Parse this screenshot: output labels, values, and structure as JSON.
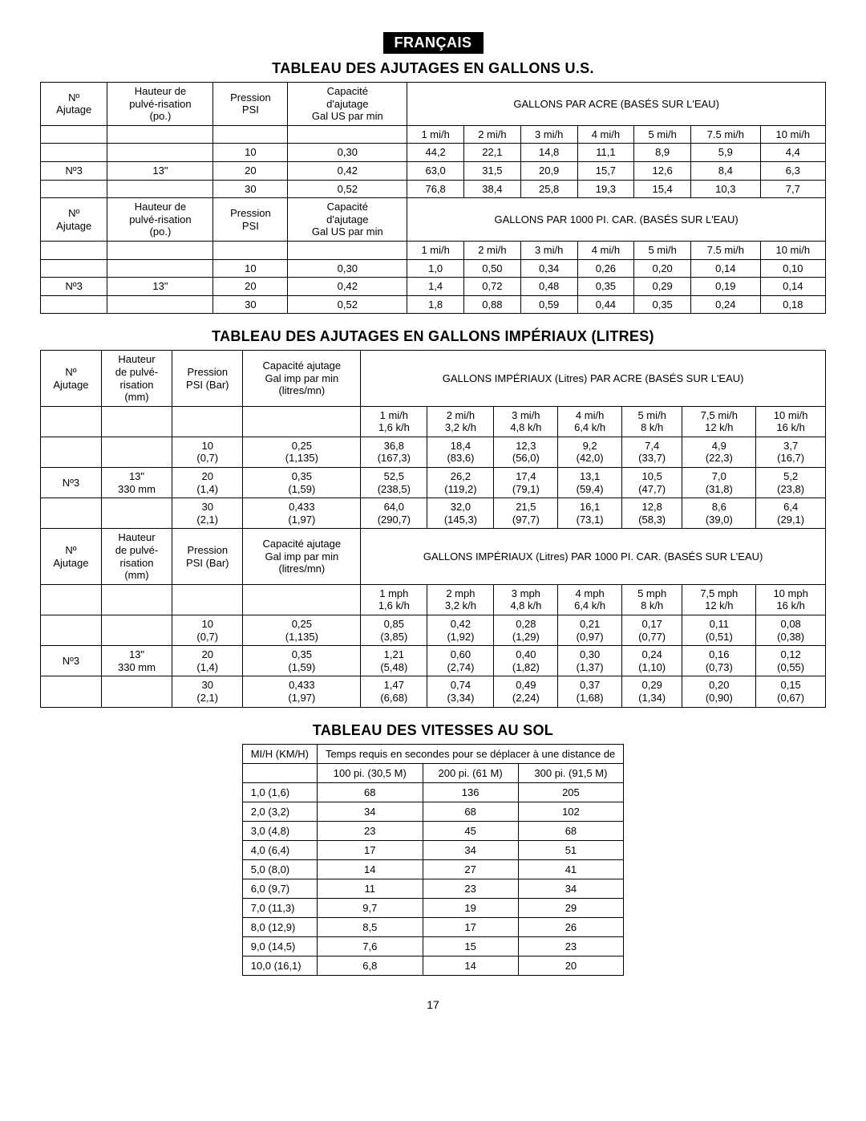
{
  "lang_badge": "FRANÇAIS",
  "page_number": "17",
  "colors": {
    "badge_bg": "#000000",
    "badge_fg": "#ffffff",
    "text": "#000000",
    "bg": "#ffffff",
    "border": "#000000"
  },
  "fonts": {
    "family": "Arial",
    "title_size_pt": 14,
    "body_size_pt": 10
  },
  "table_us": {
    "title": "TABLEAU DES AJUTAGES EN GALLONS U.S.",
    "col_headers_1": [
      "Nº\nAjutage",
      "Hauteur de\npulvé-risation\n(po.)",
      "Pression\nPSI",
      "Capacité\nd'ajutage\nGal US par min"
    ],
    "span_header_1": "GALLONS PAR ACRE (BASÉS SUR L'EAU)",
    "speeds_1": [
      "1 mi/h",
      "2 mi/h",
      "3 mi/h",
      "4 mi/h",
      "5 mi/h",
      "7.5 mi/h",
      "10 mi/h"
    ],
    "rows_1": [
      [
        "",
        "",
        "10",
        "0,30",
        "44,2",
        "22,1",
        "14,8",
        "11,1",
        "8,9",
        "5,9",
        "4,4"
      ],
      [
        "Nº3",
        "13\"",
        "20",
        "0,42",
        "63,0",
        "31,5",
        "20,9",
        "15,7",
        "12,6",
        "8,4",
        "6,3"
      ],
      [
        "",
        "",
        "30",
        "0,52",
        "76,8",
        "38,4",
        "25,8",
        "19,3",
        "15,4",
        "10,3",
        "7,7"
      ]
    ],
    "col_headers_2": [
      "Nº\nAjutage",
      "Hauteur de\npulvé-risation\n(po.)",
      "Pression\nPSI",
      "Capacité\nd'ajutage\nGal US par min"
    ],
    "span_header_2": "GALLONS PAR 1000 PI. CAR. (BASÉS SUR L'EAU)",
    "speeds_2": [
      "1 mi/h",
      "2 mi/h",
      "3 mi/h",
      "4 mi/h",
      "5 mi/h",
      "7.5 mi/h",
      "10 mi/h"
    ],
    "rows_2": [
      [
        "",
        "",
        "10",
        "0,30",
        "1,0",
        "0,50",
        "0,34",
        "0,26",
        "0,20",
        "0,14",
        "0,10"
      ],
      [
        "Nº3",
        "13\"",
        "20",
        "0,42",
        "1,4",
        "0,72",
        "0,48",
        "0,35",
        "0,29",
        "0,19",
        "0,14"
      ],
      [
        "",
        "",
        "30",
        "0,52",
        "1,8",
        "0,88",
        "0,59",
        "0,44",
        "0,35",
        "0,24",
        "0,18"
      ]
    ]
  },
  "table_imp": {
    "title": "TABLEAU DES AJUTAGES EN GALLONS IMPÉRIAUX (LITRES)",
    "col_headers_1": [
      "Nº\nAjutage",
      "Hauteur\nde pulvé-\nrisation\n(mm)",
      "Pression\nPSI (Bar)",
      "Capacité ajutage\nGal imp par min\n(litres/mn)"
    ],
    "span_header_1": "GALLONS IMPÉRIAUX (Litres) PAR ACRE (BASÉS SUR L'EAU)",
    "speeds_1": [
      "1 mi/h\n1,6 k/h",
      "2 mi/h\n3,2 k/h",
      "3 mi/h\n4,8 k/h",
      "4 mi/h\n6,4 k/h",
      "5 mi/h\n8 k/h",
      "7,5 mi/h\n12 k/h",
      "10 mi/h\n16 k/h"
    ],
    "rows_1": [
      [
        "",
        "",
        "10\n(0,7)",
        "0,25\n(1,135)",
        "36,8\n(167,3)",
        "18,4\n(83,6)",
        "12,3\n(56,0)",
        "9,2\n(42,0)",
        "7,4\n(33,7)",
        "4,9\n(22,3)",
        "3,7\n(16,7)"
      ],
      [
        "Nº3",
        "13\"\n330 mm",
        "20\n(1,4)",
        "0,35\n(1,59)",
        "52,5\n(238,5)",
        "26,2\n(119,2)",
        "17,4\n(79,1)",
        "13,1\n(59,4)",
        "10,5\n(47,7)",
        "7,0\n(31,8)",
        "5,2\n(23,8)"
      ],
      [
        "",
        "",
        "30\n(2,1)",
        "0,433\n(1,97)",
        "64,0\n(290,7)",
        "32,0\n(145,3)",
        "21,5\n(97,7)",
        "16,1\n(73,1)",
        "12,8\n(58,3)",
        "8,6\n(39,0)",
        "6,4\n(29,1)"
      ]
    ],
    "col_headers_2": [
      "Nº\nAjutage",
      "Hauteur\nde pulvé-\nrisation\n(mm)",
      "Pression\nPSI (Bar)",
      "Capacité ajutage\nGal imp par min\n(litres/mn)"
    ],
    "span_header_2": "GALLONS IMPÉRIAUX (Litres) PAR 1000 PI. CAR. (BASÉS SUR L'EAU)",
    "speeds_2": [
      "1 mph\n1,6 k/h",
      "2 mph\n3,2 k/h",
      "3 mph\n4,8 k/h",
      "4 mph\n6,4 k/h",
      "5 mph\n8 k/h",
      "7,5 mph\n12 k/h",
      "10 mph\n16 k/h"
    ],
    "rows_2": [
      [
        "",
        "",
        "10\n(0,7)",
        "0,25\n(1,135)",
        "0,85\n(3,85)",
        "0,42\n(1,92)",
        "0,28\n(1,29)",
        "0,21\n(0,97)",
        "0,17\n(0,77)",
        "0,11\n(0,51)",
        "0,08\n(0,38)"
      ],
      [
        "Nº3",
        "13\"\n330 mm",
        "20\n(1,4)",
        "0,35\n(1,59)",
        "1,21\n(5,48)",
        "0,60\n(2,74)",
        "0,40\n(1,82)",
        "0,30\n(1,37)",
        "0,24\n(1,10)",
        "0,16\n(0,73)",
        "0,12\n(0,55)"
      ],
      [
        "",
        "",
        "30\n(2,1)",
        "0,433\n(1,97)",
        "1,47\n(6,68)",
        "0,74\n(3,34)",
        "0,49\n(2,24)",
        "0,37\n(1,68)",
        "0,29\n(1,34)",
        "0,20\n(0,90)",
        "0,15\n(0,67)"
      ]
    ]
  },
  "table_speed": {
    "title": "TABLEAU DES VITESSES AU SOL",
    "header_left": "MI/H (KM/H)",
    "header_span": "Temps requis en secondes pour se déplacer à une distance de",
    "dist_headers": [
      "100 pi. (30,5 M)",
      "200 pi. (61 M)",
      "300 pi. (91,5 M)"
    ],
    "rows": [
      [
        "1,0 (1,6)",
        "68",
        "136",
        "205"
      ],
      [
        "2,0 (3,2)",
        "34",
        "68",
        "102"
      ],
      [
        "3,0 (4,8)",
        "23",
        "45",
        "68"
      ],
      [
        "4,0 (6,4)",
        "17",
        "34",
        "51"
      ],
      [
        "5,0 (8,0)",
        "14",
        "27",
        "41"
      ],
      [
        "6,0 (9,7)",
        "11",
        "23",
        "34"
      ],
      [
        "7,0 (11,3)",
        "9,7",
        "19",
        "29"
      ],
      [
        "8,0 (12,9)",
        "8,5",
        "17",
        "26"
      ],
      [
        "9,0 (14,5)",
        "7,6",
        "15",
        "23"
      ],
      [
        "10,0 (16,1)",
        "6,8",
        "14",
        "20"
      ]
    ]
  }
}
